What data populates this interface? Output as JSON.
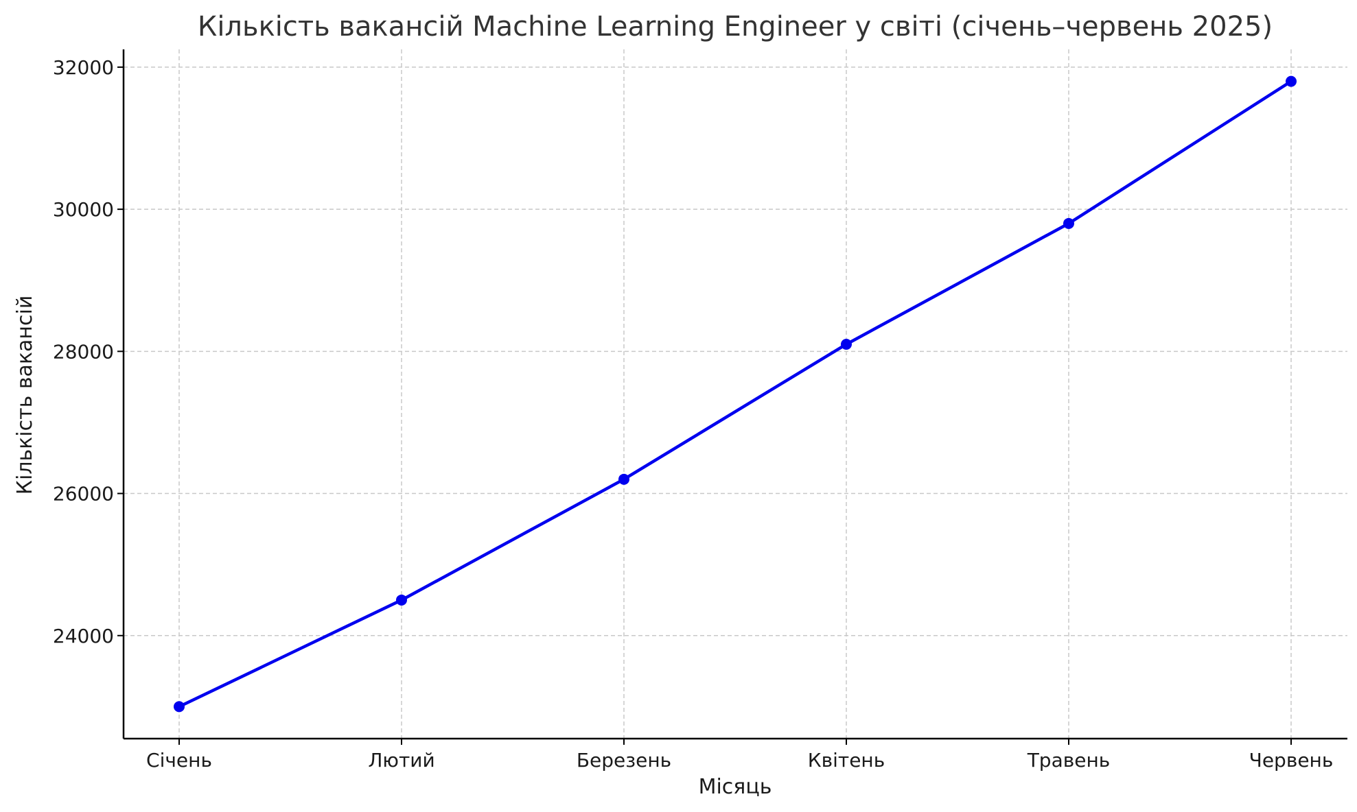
{
  "chart_data": {
    "type": "line",
    "title": "Кількість вакансій Machine Learning Engineer у світі (січень–червень 2025)",
    "xlabel": "Місяць",
    "ylabel": "Кількість вакансій",
    "categories": [
      "Січень",
      "Лютий",
      "Березень",
      "Квітень",
      "Травень",
      "Червень"
    ],
    "series": [
      {
        "values": [
          23000,
          24500,
          26200,
          28100,
          29800,
          31800
        ],
        "color": "#0000ee",
        "marker": "circle"
      }
    ],
    "ylim": [
      22550,
      32250
    ],
    "yticks": [
      "24000",
      "26000",
      "28000",
      "30000",
      "32000"
    ],
    "grid": true
  }
}
